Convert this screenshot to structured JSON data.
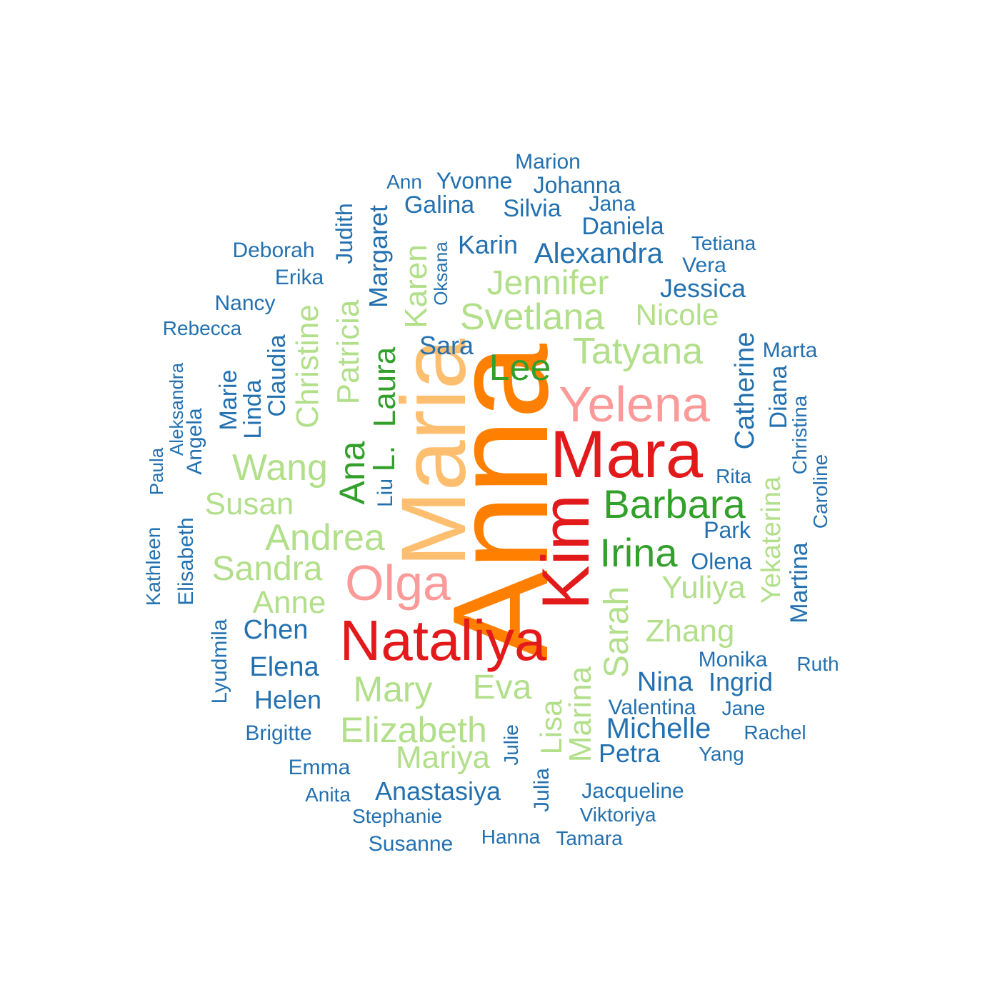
{
  "palette": {
    "blue": "#2471b0",
    "light_green": "#b2df8a",
    "green": "#33a02c",
    "red": "#e31a1c",
    "pink": "#fb9a99",
    "orange": "#ff7f00",
    "light_orange": "#fdbf6f"
  },
  "words": [
    {
      "text": "Anna",
      "color": "orange"
    },
    {
      "text": "Maria",
      "color": "light_orange"
    },
    {
      "text": "Mara",
      "color": "red"
    },
    {
      "text": "Kim",
      "color": "red"
    },
    {
      "text": "Nataliya",
      "color": "red"
    },
    {
      "text": "Yelena",
      "color": "pink"
    },
    {
      "text": "Olga",
      "color": "pink"
    },
    {
      "text": "Lee",
      "color": "green"
    },
    {
      "text": "Barbara",
      "color": "green"
    },
    {
      "text": "Irina",
      "color": "green"
    },
    {
      "text": "Ana",
      "color": "green"
    },
    {
      "text": "L.",
      "color": "green"
    },
    {
      "text": "Laura",
      "color": "green"
    },
    {
      "text": "Liu",
      "color": "blue"
    },
    {
      "text": "Tatyana",
      "color": "light_green"
    },
    {
      "text": "Svetlana",
      "color": "light_green"
    },
    {
      "text": "Jennifer",
      "color": "light_green"
    },
    {
      "text": "Nicole",
      "color": "light_green"
    },
    {
      "text": "Wang",
      "color": "light_green"
    },
    {
      "text": "Susan",
      "color": "light_green"
    },
    {
      "text": "Andrea",
      "color": "light_green"
    },
    {
      "text": "Sandra",
      "color": "light_green"
    },
    {
      "text": "Anne",
      "color": "light_green"
    },
    {
      "text": "Yuliya",
      "color": "light_green"
    },
    {
      "text": "Zhang",
      "color": "light_green"
    },
    {
      "text": "Sarah",
      "color": "light_green"
    },
    {
      "text": "Mary",
      "color": "light_green"
    },
    {
      "text": "Eva",
      "color": "light_green"
    },
    {
      "text": "Elizabeth",
      "color": "light_green"
    },
    {
      "text": "Mariya",
      "color": "light_green"
    },
    {
      "text": "Marina",
      "color": "light_green"
    },
    {
      "text": "Lisa",
      "color": "light_green"
    },
    {
      "text": "Yekaterina",
      "color": "light_green"
    },
    {
      "text": "Christine",
      "color": "light_green"
    },
    {
      "text": "Patricia",
      "color": "light_green"
    },
    {
      "text": "Karen",
      "color": "light_green"
    },
    {
      "text": "Margaret",
      "color": "blue"
    },
    {
      "text": "Judith",
      "color": "blue"
    },
    {
      "text": "Oksana",
      "color": "blue"
    },
    {
      "text": "Sara",
      "color": "blue"
    },
    {
      "text": "Karin",
      "color": "blue"
    },
    {
      "text": "Galina",
      "color": "blue"
    },
    {
      "text": "Ann",
      "color": "blue"
    },
    {
      "text": "Yvonne",
      "color": "blue"
    },
    {
      "text": "Marion",
      "color": "blue"
    },
    {
      "text": "Johanna",
      "color": "blue"
    },
    {
      "text": "Silvia",
      "color": "blue"
    },
    {
      "text": "Jana",
      "color": "blue"
    },
    {
      "text": "Daniela",
      "color": "blue"
    },
    {
      "text": "Alexandra",
      "color": "blue"
    },
    {
      "text": "Tetiana",
      "color": "blue"
    },
    {
      "text": "Vera",
      "color": "blue"
    },
    {
      "text": "Jessica",
      "color": "blue"
    },
    {
      "text": "Deborah",
      "color": "blue"
    },
    {
      "text": "Erika",
      "color": "blue"
    },
    {
      "text": "Nancy",
      "color": "blue"
    },
    {
      "text": "Rebecca",
      "color": "blue"
    },
    {
      "text": "Claudia",
      "color": "blue"
    },
    {
      "text": "Linda",
      "color": "blue"
    },
    {
      "text": "Marie",
      "color": "blue"
    },
    {
      "text": "Aleksandra",
      "color": "blue"
    },
    {
      "text": "Angela",
      "color": "blue"
    },
    {
      "text": "Paula",
      "color": "blue"
    },
    {
      "text": "Elisabeth",
      "color": "blue"
    },
    {
      "text": "Kathleen",
      "color": "blue"
    },
    {
      "text": "Lyudmila",
      "color": "blue"
    },
    {
      "text": "Chen",
      "color": "blue"
    },
    {
      "text": "Elena",
      "color": "blue"
    },
    {
      "text": "Helen",
      "color": "blue"
    },
    {
      "text": "Brigitte",
      "color": "blue"
    },
    {
      "text": "Emma",
      "color": "blue"
    },
    {
      "text": "Anita",
      "color": "blue"
    },
    {
      "text": "Anastasiya",
      "color": "blue"
    },
    {
      "text": "Stephanie",
      "color": "blue"
    },
    {
      "text": "Susanne",
      "color": "blue"
    },
    {
      "text": "Julie",
      "color": "blue"
    },
    {
      "text": "Julia",
      "color": "blue"
    },
    {
      "text": "Hanna",
      "color": "blue"
    },
    {
      "text": "Tamara",
      "color": "blue"
    },
    {
      "text": "Jacqueline",
      "color": "blue"
    },
    {
      "text": "Viktoriya",
      "color": "blue"
    },
    {
      "text": "Petra",
      "color": "blue"
    },
    {
      "text": "Michelle",
      "color": "blue"
    },
    {
      "text": "Valentina",
      "color": "blue"
    },
    {
      "text": "Nina",
      "color": "blue"
    },
    {
      "text": "Ingrid",
      "color": "blue"
    },
    {
      "text": "Monika",
      "color": "blue"
    },
    {
      "text": "Jane",
      "color": "blue"
    },
    {
      "text": "Rachel",
      "color": "blue"
    },
    {
      "text": "Yang",
      "color": "blue"
    },
    {
      "text": "Ruth",
      "color": "blue"
    },
    {
      "text": "Olena",
      "color": "blue"
    },
    {
      "text": "Park",
      "color": "blue"
    },
    {
      "text": "Rita",
      "color": "blue"
    },
    {
      "text": "Martina",
      "color": "blue"
    },
    {
      "text": "Catherine",
      "color": "blue"
    },
    {
      "text": "Diana",
      "color": "blue"
    },
    {
      "text": "Marta",
      "color": "blue"
    },
    {
      "text": "Christina",
      "color": "blue"
    },
    {
      "text": "Caroline",
      "color": "blue"
    }
  ]
}
